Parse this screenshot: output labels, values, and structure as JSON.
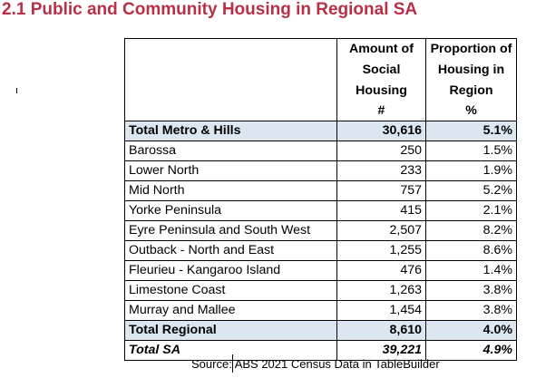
{
  "title": "2.1 Public and Community Housing in Regional SA",
  "table": {
    "headers": {
      "amount": [
        "Amount of",
        "Social",
        "Housing"
      ],
      "proportion": [
        "Proportion of",
        "Housing in",
        "Region"
      ],
      "amount_unit": "#",
      "proportion_unit": "%"
    },
    "rows": [
      {
        "name": "Total Metro & Hills",
        "amount": "30,616",
        "proportion": "5.1%"
      },
      {
        "name": "Barossa",
        "amount": "250",
        "proportion": "1.5%"
      },
      {
        "name": "Lower North",
        "amount": "233",
        "proportion": "1.9%"
      },
      {
        "name": "Mid North",
        "amount": "757",
        "proportion": "5.2%"
      },
      {
        "name": "Yorke Peninsula",
        "amount": "415",
        "proportion": "2.1%"
      },
      {
        "name": "Eyre Peninsula and South West",
        "amount": "2,507",
        "proportion": "8.2%"
      },
      {
        "name": "Outback - North and East",
        "amount": "1,255",
        "proportion": "8.6%"
      },
      {
        "name": "Fleurieu - Kangaroo Island",
        "amount": "476",
        "proportion": "1.4%"
      },
      {
        "name": "Limestone Coast",
        "amount": "1,263",
        "proportion": "3.8%"
      },
      {
        "name": "Murray and Mallee",
        "amount": "1,454",
        "proportion": "3.8%"
      },
      {
        "name": "Total Regional",
        "amount": "8,610",
        "proportion": "4.0%"
      },
      {
        "name": "Total SA",
        "amount": "39,221",
        "proportion": "4.9%"
      }
    ]
  },
  "source": "Source: ABS 2021 Census Data in TableBuilder",
  "colors": {
    "title": "#b83046",
    "shade": "#dce6f1"
  }
}
